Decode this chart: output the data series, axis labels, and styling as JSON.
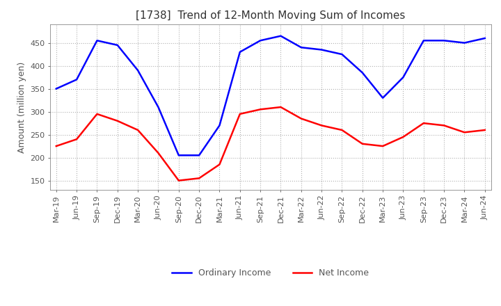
{
  "title": "[1738]  Trend of 12-Month Moving Sum of Incomes",
  "ylabel": "Amount (million yen)",
  "x_labels": [
    "Mar-19",
    "Jun-19",
    "Sep-19",
    "Dec-19",
    "Mar-20",
    "Jun-20",
    "Sep-20",
    "Dec-20",
    "Mar-21",
    "Jun-21",
    "Sep-21",
    "Dec-21",
    "Mar-22",
    "Jun-22",
    "Sep-22",
    "Dec-22",
    "Mar-23",
    "Jun-23",
    "Sep-23",
    "Dec-23",
    "Mar-24",
    "Jun-24"
  ],
  "ordinary_income": [
    350,
    370,
    455,
    445,
    390,
    310,
    205,
    205,
    270,
    430,
    455,
    465,
    440,
    435,
    425,
    385,
    330,
    375,
    455,
    455,
    450,
    460
  ],
  "net_income": [
    225,
    240,
    295,
    280,
    260,
    210,
    150,
    155,
    185,
    295,
    305,
    310,
    285,
    270,
    260,
    230,
    225,
    245,
    275,
    270,
    255,
    260
  ],
  "ordinary_color": "#0000FF",
  "net_color": "#FF0000",
  "ylim": [
    130,
    490
  ],
  "yticks": [
    150,
    200,
    250,
    300,
    350,
    400,
    450
  ],
  "background_color": "#FFFFFF",
  "plot_bg_color": "#FFFFFF",
  "grid_color": "#B0B0B0",
  "title_color": "#333333",
  "title_fontsize": 11,
  "ylabel_fontsize": 9,
  "tick_fontsize": 8,
  "legend_fontsize": 9,
  "linewidth": 1.8
}
